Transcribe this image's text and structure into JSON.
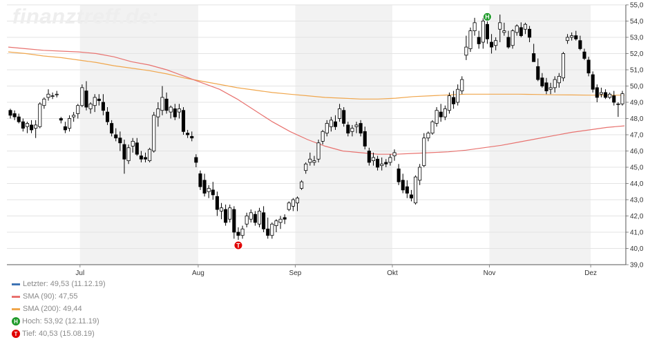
{
  "watermark": "finanztreff.de:",
  "legend": {
    "last": {
      "text": "Letzter: 49,53 (11.12.19)",
      "color": "#3e74b5"
    },
    "sma90": {
      "text": "SMA (90): 47,55",
      "color": "#e8716e"
    },
    "sma200": {
      "text": "SMA (200): 49,44",
      "color": "#f0a64c"
    },
    "high": {
      "text": "Hoch: 53,92 (12.11.19)",
      "icon": "H",
      "color": "#1f9a2a"
    },
    "low": {
      "text": "Tief: 40,53 (15.08.19)",
      "icon": "T",
      "color": "#e00000"
    }
  },
  "chart_data": {
    "type": "candlestick",
    "ylim": [
      39.0,
      55.0
    ],
    "y_ticks": [
      "39,0",
      "40,0",
      "41,0",
      "42,0",
      "43,0",
      "44,0",
      "45,0",
      "46,0",
      "47,0",
      "48,0",
      "49,0",
      "50,0",
      "51,0",
      "52,0",
      "53,0",
      "54,0",
      "55,0"
    ],
    "month_labels": [
      "Jul",
      "Aug",
      "Sep",
      "Okt",
      "Nov",
      "Dez"
    ],
    "shaded_months": [
      "Jul",
      "Sep",
      "Nov"
    ],
    "grid": true,
    "ohlc": [
      [
        48.5,
        48.6,
        48.0,
        48.2
      ],
      [
        48.3,
        48.5,
        47.9,
        48.1
      ],
      [
        48.1,
        48.3,
        47.7,
        47.8
      ],
      [
        47.8,
        48.0,
        47.2,
        47.4
      ],
      [
        47.5,
        47.8,
        47.1,
        47.7
      ],
      [
        47.6,
        47.9,
        47.1,
        47.3
      ],
      [
        47.4,
        47.9,
        46.8,
        47.6
      ],
      [
        47.5,
        49.0,
        47.4,
        48.9
      ],
      [
        48.8,
        49.3,
        48.6,
        49.2
      ],
      [
        49.3,
        49.8,
        49.1,
        49.5
      ],
      [
        49.4,
        49.6,
        49.2,
        49.4
      ],
      [
        49.5,
        49.7,
        49.3,
        49.5
      ],
      [
        48.0,
        48.1,
        47.7,
        47.9
      ],
      [
        47.5,
        47.8,
        47.1,
        47.3
      ],
      [
        47.4,
        48.2,
        47.2,
        48.0
      ],
      [
        48.1,
        48.4,
        47.8,
        48.2
      ],
      [
        48.3,
        48.9,
        48.0,
        48.8
      ],
      [
        48.8,
        50.1,
        48.7,
        49.9
      ],
      [
        49.7,
        50.3,
        48.5,
        48.7
      ],
      [
        48.6,
        49.0,
        48.3,
        48.9
      ],
      [
        48.8,
        49.5,
        48.4,
        49.3
      ],
      [
        49.2,
        49.5,
        48.8,
        49.1
      ],
      [
        49.0,
        49.5,
        48.2,
        48.5
      ],
      [
        48.4,
        48.7,
        47.6,
        47.8
      ],
      [
        47.7,
        47.9,
        46.9,
        47.1
      ],
      [
        47.0,
        47.4,
        46.6,
        46.8
      ],
      [
        46.8,
        47.2,
        46.0,
        46.5
      ],
      [
        46.4,
        46.7,
        44.6,
        45.5
      ],
      [
        45.4,
        46.4,
        45.2,
        46.2
      ],
      [
        46.3,
        46.8,
        45.9,
        46.6
      ],
      [
        46.5,
        46.8,
        45.7,
        45.8
      ],
      [
        45.7,
        46.0,
        45.3,
        45.5
      ],
      [
        45.6,
        45.9,
        45.3,
        45.5
      ],
      [
        45.4,
        46.2,
        45.3,
        46.1
      ],
      [
        46.0,
        48.4,
        45.9,
        48.2
      ],
      [
        48.1,
        49.0,
        47.5,
        48.6
      ],
      [
        48.5,
        50.0,
        48.2,
        49.3
      ],
      [
        49.2,
        49.6,
        48.3,
        48.5
      ],
      [
        48.4,
        48.8,
        48.0,
        48.7
      ],
      [
        48.6,
        48.9,
        47.9,
        48.1
      ],
      [
        48.4,
        48.9,
        48.0,
        48.6
      ],
      [
        48.5,
        48.7,
        47.0,
        47.2
      ],
      [
        47.1,
        47.3,
        46.8,
        47.0
      ],
      [
        46.9,
        47.2,
        46.6,
        46.8
      ],
      [
        45.6,
        45.8,
        45.0,
        45.3
      ],
      [
        44.6,
        44.8,
        43.6,
        43.8
      ],
      [
        44.2,
        44.6,
        43.2,
        43.4
      ],
      [
        43.5,
        43.9,
        43.1,
        43.7
      ],
      [
        43.6,
        44.1,
        43.0,
        43.3
      ],
      [
        43.2,
        43.5,
        42.0,
        42.4
      ],
      [
        42.3,
        42.8,
        41.8,
        42.5
      ],
      [
        42.4,
        42.7,
        41.4,
        41.6
      ],
      [
        41.8,
        42.7,
        41.6,
        42.5
      ],
      [
        42.4,
        42.6,
        40.6,
        41.0
      ],
      [
        41.0,
        41.3,
        40.53,
        40.8
      ],
      [
        40.8,
        41.4,
        40.6,
        41.2
      ],
      [
        41.5,
        42.2,
        41.3,
        42.0
      ],
      [
        41.8,
        42.4,
        41.6,
        42.2
      ],
      [
        42.1,
        42.3,
        41.4,
        41.6
      ],
      [
        41.5,
        42.5,
        41.3,
        42.3
      ],
      [
        42.2,
        42.6,
        41.0,
        41.2
      ],
      [
        41.2,
        41.9,
        40.6,
        40.8
      ],
      [
        40.8,
        41.6,
        40.6,
        41.5
      ],
      [
        41.4,
        41.8,
        41.0,
        41.7
      ],
      [
        41.6,
        42.0,
        41.2,
        41.8
      ],
      [
        41.9,
        42.1,
        41.5,
        41.8
      ],
      [
        42.4,
        42.9,
        42.3,
        42.8
      ],
      [
        42.6,
        43.1,
        42.3,
        43.0
      ],
      [
        42.8,
        43.2,
        42.3,
        43.1
      ],
      [
        43.7,
        44.2,
        43.6,
        44.1
      ],
      [
        44.8,
        45.3,
        44.6,
        45.2
      ],
      [
        45.3,
        45.9,
        45.1,
        45.5
      ],
      [
        45.3,
        45.7,
        45.1,
        45.4
      ],
      [
        45.5,
        46.7,
        45.3,
        46.5
      ],
      [
        46.6,
        47.3,
        46.4,
        47.2
      ],
      [
        47.1,
        47.9,
        46.9,
        47.7
      ],
      [
        47.5,
        48.1,
        47.2,
        47.9
      ],
      [
        47.8,
        48.2,
        47.3,
        47.5
      ],
      [
        48.0,
        48.9,
        47.8,
        48.6
      ],
      [
        48.5,
        48.7,
        47.5,
        47.7
      ],
      [
        47.6,
        47.8,
        46.9,
        47.1
      ],
      [
        47.2,
        47.6,
        46.9,
        47.4
      ],
      [
        47.5,
        47.8,
        47.1,
        47.6
      ],
      [
        47.7,
        47.9,
        46.9,
        47.1
      ],
      [
        47.2,
        47.5,
        46.1,
        46.3
      ],
      [
        46.0,
        46.2,
        45.1,
        45.3
      ],
      [
        45.4,
        45.9,
        45.1,
        45.6
      ],
      [
        45.5,
        45.7,
        44.8,
        45.0
      ],
      [
        45.1,
        45.6,
        44.8,
        45.2
      ],
      [
        45.3,
        45.5,
        45.0,
        45.2
      ],
      [
        45.3,
        45.8,
        45.1,
        45.6
      ],
      [
        45.7,
        46.1,
        45.4,
        45.9
      ],
      [
        44.9,
        45.2,
        43.9,
        44.1
      ],
      [
        44.2,
        44.6,
        43.4,
        43.6
      ],
      [
        43.8,
        44.2,
        43.1,
        43.4
      ],
      [
        43.3,
        43.6,
        42.9,
        43.1
      ],
      [
        42.8,
        44.5,
        42.7,
        44.4
      ],
      [
        44.2,
        45.2,
        43.9,
        45.0
      ],
      [
        45.1,
        47.1,
        45.0,
        46.8
      ],
      [
        46.8,
        47.2,
        46.6,
        47.1
      ],
      [
        47.1,
        47.9,
        47.0,
        47.8
      ],
      [
        47.7,
        48.7,
        47.5,
        48.5
      ],
      [
        48.4,
        48.9,
        47.8,
        48.1
      ],
      [
        48.1,
        48.8,
        47.9,
        48.6
      ],
      [
        48.5,
        49.6,
        48.3,
        49.4
      ],
      [
        49.3,
        49.7,
        48.6,
        48.9
      ],
      [
        49.0,
        50.1,
        48.8,
        49.8
      ],
      [
        49.7,
        50.6,
        49.5,
        50.4
      ],
      [
        51.9,
        53.1,
        51.6,
        52.4
      ],
      [
        52.3,
        53.6,
        52.1,
        53.4
      ],
      [
        53.4,
        54.2,
        53.1,
        53.9
      ],
      [
        53.0,
        53.4,
        52.3,
        52.6
      ],
      [
        52.7,
        54.2,
        52.3,
        54.0
      ],
      [
        53.8,
        54.4,
        52.6,
        52.9
      ],
      [
        52.7,
        53.2,
        52.0,
        52.4
      ],
      [
        52.5,
        53.0,
        52.2,
        52.8
      ],
      [
        53.5,
        54.4,
        52.7,
        53.9
      ],
      [
        53.3,
        53.9,
        53.1,
        53.4
      ],
      [
        53.0,
        53.4,
        52.3,
        52.4
      ],
      [
        52.5,
        53.5,
        52.3,
        53.4
      ],
      [
        53.3,
        53.8,
        53.1,
        53.7
      ],
      [
        53.6,
        53.92,
        53.0,
        53.1
      ],
      [
        53.5,
        53.9,
        53.2,
        53.8
      ],
      [
        53.5,
        53.7,
        52.7,
        53.0
      ],
      [
        52.0,
        52.6,
        51.5,
        51.5
      ],
      [
        51.2,
        51.7,
        50.3,
        50.4
      ],
      [
        50.5,
        50.8,
        49.9,
        50.0
      ],
      [
        50.2,
        50.5,
        49.5,
        49.7
      ],
      [
        49.8,
        50.2,
        49.5,
        49.9
      ],
      [
        49.9,
        50.6,
        49.6,
        50.4
      ],
      [
        50.2,
        50.8,
        49.9,
        50.6
      ],
      [
        50.5,
        52.1,
        50.3,
        52.0
      ],
      [
        52.8,
        53.2,
        52.6,
        53.0
      ],
      [
        53.0,
        53.3,
        52.8,
        53.1
      ],
      [
        53.1,
        53.4,
        52.8,
        52.9
      ],
      [
        52.8,
        53.1,
        52.2,
        52.3
      ],
      [
        52.1,
        52.3,
        51.6,
        51.7
      ],
      [
        51.6,
        51.8,
        50.6,
        50.8
      ],
      [
        50.7,
        50.9,
        49.6,
        49.8
      ],
      [
        49.9,
        50.1,
        49.0,
        49.3
      ],
      [
        49.5,
        49.9,
        49.3,
        49.6
      ],
      [
        49.6,
        49.8,
        49.2,
        49.3
      ],
      [
        49.3,
        49.6,
        49.2,
        49.5
      ],
      [
        49.4,
        49.7,
        48.8,
        49.0
      ],
      [
        48.9,
        49.0,
        48.1,
        48.9
      ],
      [
        48.9,
        49.7,
        48.8,
        49.53
      ]
    ],
    "sma90": [
      52.4,
      52.3,
      52.2,
      52.15,
      52.1,
      52.0,
      51.8,
      51.5,
      51.3,
      51.0,
      50.6,
      50.2,
      49.8,
      49.2,
      48.5,
      47.8,
      47.2,
      46.7,
      46.3,
      46.0,
      45.9,
      45.8,
      45.8,
      45.85,
      45.9,
      45.95,
      46.05,
      46.2,
      46.35,
      46.55,
      46.75,
      46.95,
      47.15,
      47.3,
      47.45,
      47.55
    ],
    "sma200": [
      52.1,
      52.0,
      51.85,
      51.75,
      51.6,
      51.45,
      51.25,
      51.1,
      50.95,
      50.75,
      50.5,
      50.3,
      50.1,
      49.9,
      49.75,
      49.6,
      49.5,
      49.4,
      49.3,
      49.25,
      49.2,
      49.2,
      49.25,
      49.35,
      49.4,
      49.45,
      49.5,
      49.5,
      49.5,
      49.5,
      49.48,
      49.46,
      49.45,
      49.44,
      49.44,
      49.44
    ],
    "high_marker": {
      "label": "H",
      "value": 53.92
    },
    "low_marker": {
      "label": "T",
      "value": 40.53
    }
  }
}
